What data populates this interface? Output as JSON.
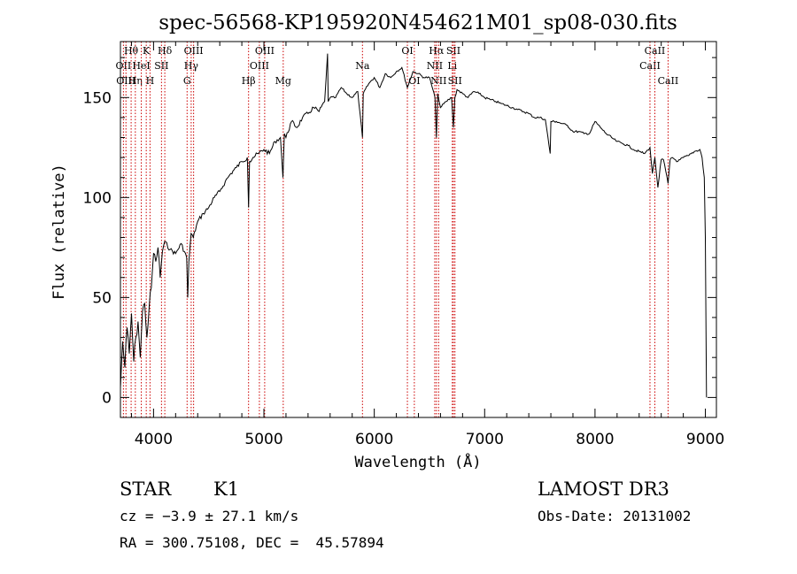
{
  "chart_data": {
    "type": "line",
    "title": "spec-56568-KP195920N454621M01_sp08-030.fits",
    "xlabel": "Wavelength (Å)",
    "ylabel": "Flux (relative)",
    "xlim": [
      3700,
      9100
    ],
    "ylim": [
      -10,
      178
    ],
    "xticks": [
      {
        "value": 4000,
        "label": "4000"
      },
      {
        "value": 5000,
        "label": "5000"
      },
      {
        "value": 6000,
        "label": "6000"
      },
      {
        "value": 7000,
        "label": "7000"
      },
      {
        "value": 8000,
        "label": "8000"
      },
      {
        "value": 9000,
        "label": "9000"
      }
    ],
    "yticks": [
      {
        "value": 0,
        "label": "0"
      },
      {
        "value": 50,
        "label": "50"
      },
      {
        "value": 100,
        "label": "100"
      },
      {
        "value": 150,
        "label": "150"
      }
    ],
    "grid": false,
    "line_color": "#000000",
    "marker_color": "#cc0000",
    "series": [
      {
        "x": [
          3700,
          3720,
          3740,
          3760,
          3780,
          3800,
          3820,
          3840,
          3860,
          3880,
          3900,
          3920,
          3940,
          3960,
          3980,
          4000,
          4020,
          4040,
          4060,
          4080,
          4100,
          4150,
          4200,
          4250,
          4300,
          4310,
          4320,
          4340,
          4360,
          4400,
          4450,
          4500,
          4550,
          4600,
          4650,
          4700,
          4750,
          4800,
          4850,
          4861,
          4870,
          4900,
          4950,
          5000,
          5050,
          5100,
          5150,
          5172,
          5185,
          5200,
          5250,
          5300,
          5350,
          5400,
          5450,
          5500,
          5550,
          5577,
          5582,
          5600,
          5650,
          5700,
          5750,
          5800,
          5850,
          5893,
          5900,
          5950,
          6000,
          6050,
          6100,
          6150,
          6200,
          6250,
          6300,
          6350,
          6400,
          6450,
          6500,
          6550,
          6563,
          6575,
          6600,
          6650,
          6700,
          6717,
          6730,
          6750,
          6800,
          6850,
          6900,
          6950,
          7000,
          7050,
          7100,
          7150,
          7200,
          7250,
          7300,
          7350,
          7400,
          7450,
          7500,
          7550,
          7594,
          7600,
          7650,
          7700,
          7750,
          7800,
          7850,
          7900,
          7950,
          8000,
          8050,
          8100,
          8150,
          8200,
          8250,
          8300,
          8350,
          8400,
          8450,
          8498,
          8520,
          8542,
          8570,
          8600,
          8620,
          8662,
          8680,
          8700,
          8750,
          8800,
          8850,
          8900,
          8950,
          8970,
          8990,
          9000,
          9010
        ],
        "y": [
          5,
          28,
          15,
          35,
          22,
          42,
          18,
          30,
          38,
          20,
          43,
          47,
          30,
          45,
          55,
          72,
          68,
          75,
          60,
          73,
          78,
          74,
          72,
          77,
          70,
          50,
          68,
          82,
          80,
          88,
          92,
          95,
          100,
          103,
          108,
          112,
          115,
          118,
          120,
          95,
          118,
          120,
          122,
          124,
          122,
          128,
          130,
          110,
          132,
          130,
          138,
          135,
          140,
          142,
          145,
          143,
          148,
          172,
          148,
          150,
          150,
          155,
          152,
          150,
          153,
          130,
          152,
          157,
          160,
          155,
          162,
          160,
          163,
          165,
          155,
          163,
          162,
          160,
          160,
          150,
          130,
          152,
          145,
          148,
          150,
          135,
          150,
          154,
          152,
          150,
          153,
          152,
          150,
          149,
          148,
          147,
          146,
          145,
          144,
          143,
          142,
          140,
          140,
          139,
          122,
          138,
          138,
          137,
          136,
          133,
          133,
          132,
          132,
          138,
          135,
          132,
          130,
          128,
          127,
          126,
          124,
          123,
          122,
          125,
          112,
          120,
          105,
          119,
          119,
          107,
          119,
          120,
          118,
          120,
          121,
          123,
          124,
          120,
          110,
          80,
          0
        ]
      }
    ],
    "line_markers": [
      {
        "wavelength": 3727,
        "label": "OII",
        "row": 1
      },
      {
        "wavelength": 3750,
        "label": "OIII",
        "row": 2
      },
      {
        "wavelength": 3797,
        "label": "Hθ",
        "row": 0
      },
      {
        "wavelength": 3835,
        "label": "Hη",
        "row": 2
      },
      {
        "wavelength": 3889,
        "label": "HeI",
        "row": 1
      },
      {
        "wavelength": 3934,
        "label": "K",
        "row": 0
      },
      {
        "wavelength": 3968,
        "label": "H",
        "row": 2
      },
      {
        "wavelength": 4072,
        "label": "SII",
        "row": 1
      },
      {
        "wavelength": 4102,
        "label": "Hδ",
        "row": 0
      },
      {
        "wavelength": 4304,
        "label": "G",
        "row": 2
      },
      {
        "wavelength": 4341,
        "label": "Hγ",
        "row": 1
      },
      {
        "wavelength": 4363,
        "label": "OIII",
        "row": 0
      },
      {
        "wavelength": 4861,
        "label": "Hβ",
        "row": 2
      },
      {
        "wavelength": 4959,
        "label": "OIII",
        "row": 1
      },
      {
        "wavelength": 5007,
        "label": "OIII",
        "row": 0
      },
      {
        "wavelength": 5175,
        "label": "Mg",
        "row": 2
      },
      {
        "wavelength": 5893,
        "label": "Na",
        "row": 1
      },
      {
        "wavelength": 6300,
        "label": "OI",
        "row": 0
      },
      {
        "wavelength": 6363,
        "label": "OI",
        "row": 2
      },
      {
        "wavelength": 6548,
        "label": "NII",
        "row": 1
      },
      {
        "wavelength": 6563,
        "label": "Hα",
        "row": 0
      },
      {
        "wavelength": 6583,
        "label": "NII",
        "row": 2
      },
      {
        "wavelength": 6707,
        "label": "Li",
        "row": 1
      },
      {
        "wavelength": 6717,
        "label": "SII",
        "row": 0
      },
      {
        "wavelength": 6731,
        "label": "SII",
        "row": 2
      },
      {
        "wavelength": 8498,
        "label": "CaII",
        "row": 1
      },
      {
        "wavelength": 8542,
        "label": "CaII",
        "row": 0
      },
      {
        "wavelength": 8662,
        "label": "CaII",
        "row": 2
      }
    ]
  },
  "info": {
    "object_class": "STAR",
    "subclass": "K1",
    "survey": "LAMOST DR3",
    "redshift": "cz = −3.9 ± 27.1 km/s",
    "obs_date": "Obs-Date: 20131002",
    "coords": "RA = 300.75108, DEC =  45.57894"
  }
}
